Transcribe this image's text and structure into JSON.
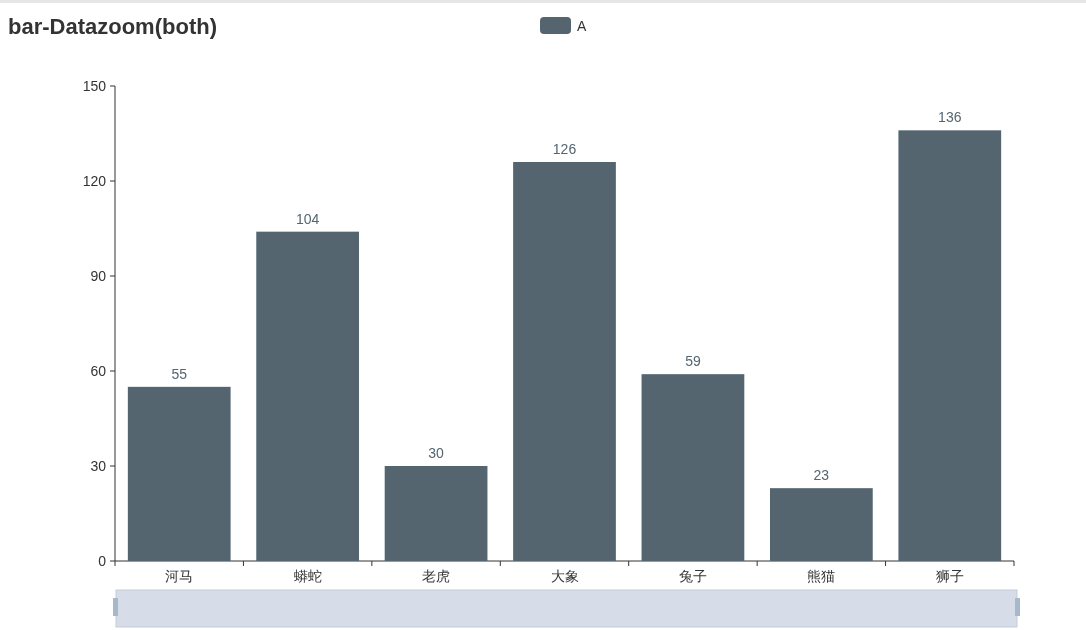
{
  "chart_data": {
    "type": "bar",
    "title": "bar-Datazoom(both)",
    "categories": [
      "河马",
      "蟒蛇",
      "老虎",
      "大象",
      "兔子",
      "熊猫",
      "狮子"
    ],
    "series": [
      {
        "name": "A",
        "color": "#546570",
        "values": [
          55,
          104,
          30,
          126,
          59,
          23,
          136
        ]
      }
    ],
    "ylim": [
      0,
      150
    ],
    "yticks": [
      0,
      30,
      60,
      90,
      120,
      150
    ],
    "data_labels": true,
    "legend": "top"
  }
}
